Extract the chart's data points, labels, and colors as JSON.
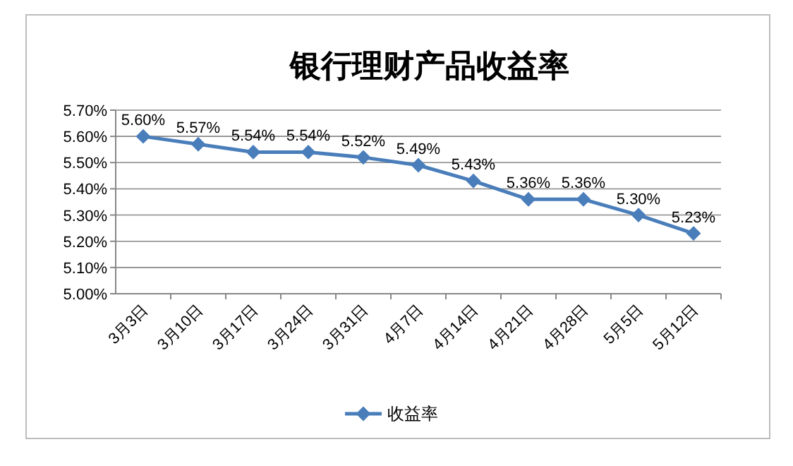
{
  "chart_data": {
    "type": "line",
    "title": "银行理财产品收益率",
    "categories": [
      "3月3日",
      "3月10日",
      "3月17日",
      "3月24日",
      "3月31日",
      "4月7日",
      "4月14日",
      "4月21日",
      "4月28日",
      "5月5日",
      "5月12日"
    ],
    "series": [
      {
        "name": "收益率",
        "color": "#4a7ebb",
        "values": [
          5.6,
          5.57,
          5.54,
          5.54,
          5.52,
          5.49,
          5.43,
          5.36,
          5.36,
          5.3,
          5.23
        ],
        "value_labels": [
          "5.60%",
          "5.57%",
          "5.54%",
          "5.54%",
          "5.52%",
          "5.49%",
          "5.43%",
          "5.36%",
          "5.36%",
          "5.30%",
          "5.23%"
        ]
      }
    ],
    "ylim": [
      5.0,
      5.7
    ],
    "yticks": [
      {
        "value": 5.0,
        "label": "5.00%"
      },
      {
        "value": 5.1,
        "label": "5.10%"
      },
      {
        "value": 5.2,
        "label": "5.20%"
      },
      {
        "value": 5.3,
        "label": "5.30%"
      },
      {
        "value": 5.4,
        "label": "5.40%"
      },
      {
        "value": 5.5,
        "label": "5.50%"
      },
      {
        "value": 5.6,
        "label": "5.60%"
      },
      {
        "value": 5.7,
        "label": "5.70%"
      }
    ],
    "grid": "y",
    "legend": "bottom",
    "marker": "diamond",
    "line_style": "solid"
  }
}
